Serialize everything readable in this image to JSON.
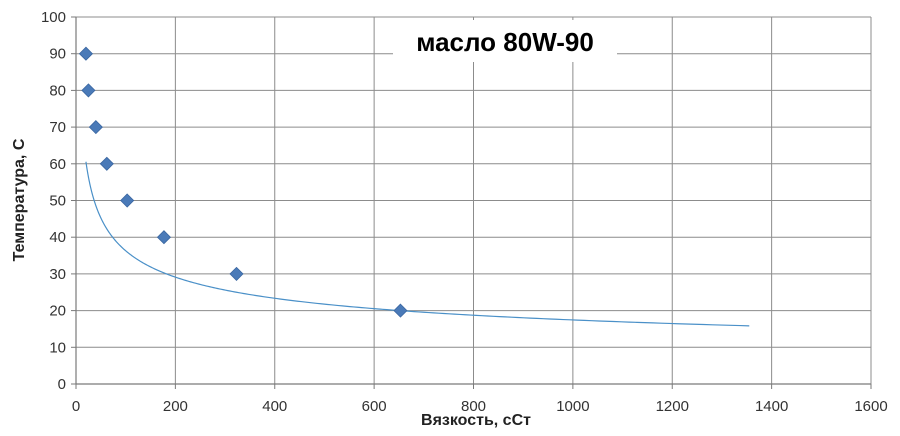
{
  "chart_data": {
    "type": "scatter",
    "title": "масло 80W-90",
    "xlabel": "Вязкость, сСт",
    "ylabel": "Температура, С",
    "xlim": [
      0,
      1600
    ],
    "ylim": [
      0,
      100
    ],
    "xticks": [
      0,
      200,
      400,
      600,
      800,
      1000,
      1200,
      1400,
      1600
    ],
    "yticks": [
      0,
      10,
      20,
      30,
      40,
      50,
      60,
      70,
      80,
      90,
      100
    ],
    "grid": true,
    "legend": "none",
    "series": [
      {
        "marker": "diamond",
        "color": "#4a7ab8",
        "points": [
          {
            "x": 20,
            "y": 90
          },
          {
            "x": 25,
            "y": 80
          },
          {
            "x": 40,
            "y": 70
          },
          {
            "x": 62,
            "y": 60
          },
          {
            "x": 103,
            "y": 50
          },
          {
            "x": 177,
            "y": 40
          },
          {
            "x": 323,
            "y": 30
          },
          {
            "x": 653,
            "y": 20
          }
        ]
      }
    ],
    "trendline": {
      "type": "power",
      "color": "#4a90c8",
      "x_range": [
        20,
        1355
      ],
      "coef": 157,
      "exponent": -0.318
    }
  }
}
